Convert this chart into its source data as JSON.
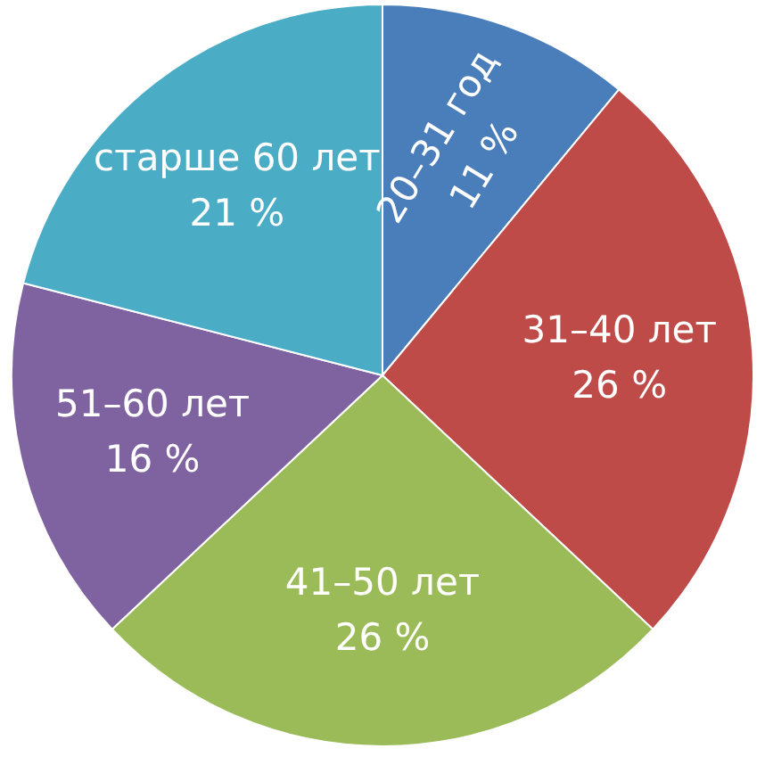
{
  "chart_data": {
    "type": "pie",
    "categories": [
      "20–31 год",
      "31–40 лет",
      "41–50 лет",
      "51–60 лет",
      "старше 60 лет"
    ],
    "values": [
      11,
      26,
      26,
      16,
      21
    ],
    "colors": [
      "#4a7ebb",
      "#be4b48",
      "#9bbb59",
      "#7f63a1",
      "#4bacc6"
    ],
    "value_labels": [
      "11 %",
      "26 %",
      "26 %",
      "16 %",
      "21 %"
    ]
  }
}
